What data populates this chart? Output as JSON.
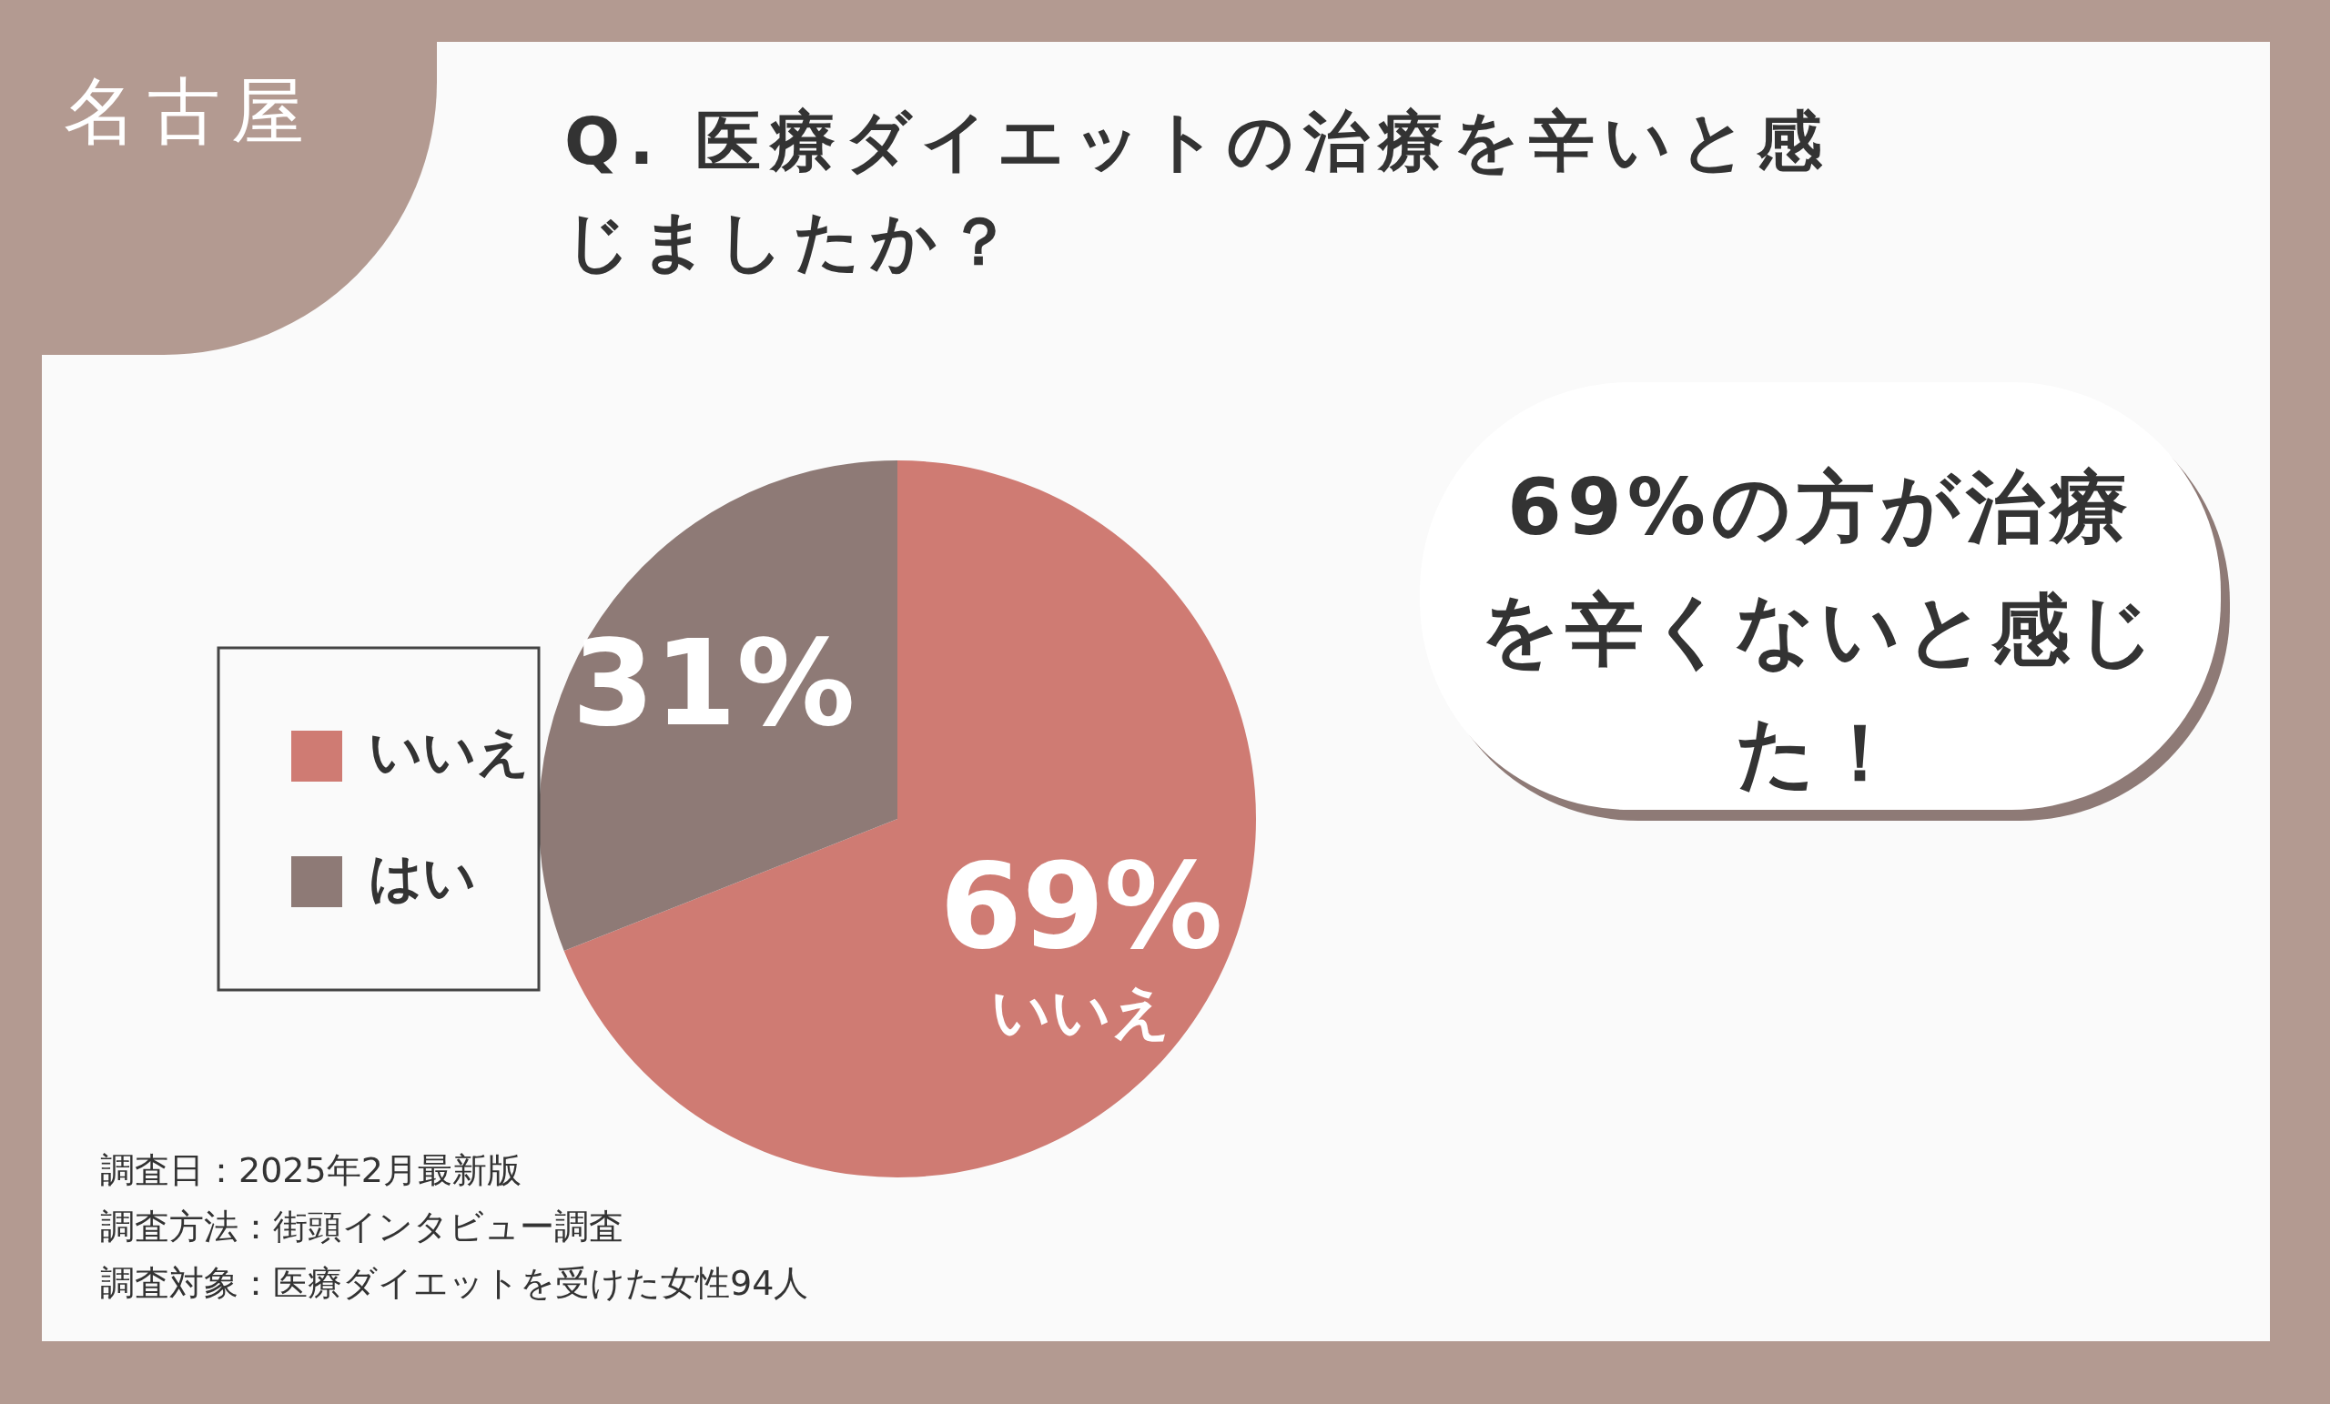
{
  "chart_data": {
    "type": "pie",
    "title": "Q. 医療ダイエットの治療を辛いと感じましたか？",
    "categories": [
      "いいえ",
      "はい"
    ],
    "values": [
      69,
      31
    ],
    "colors": [
      "#cf7b73",
      "#8e7a76"
    ],
    "value_labels": [
      "69%\nいいえ",
      "31%"
    ],
    "legend": "left",
    "annotations": [
      "名古屋",
      "69%の方が治療を辛くないと感じた！",
      "調査日：2025年2月最新版",
      "調査方法：街頭インタビュー調査",
      "調査対象：医療ダイエットを受けた女性94人"
    ]
  }
}
